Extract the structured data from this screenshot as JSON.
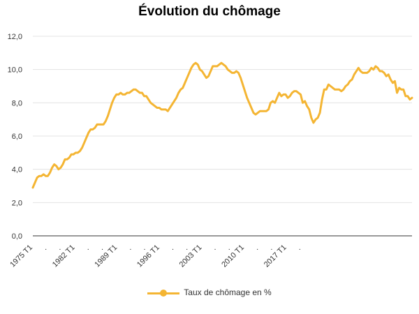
{
  "chart_data": {
    "type": "line",
    "title": "Évolution du chômage",
    "ylim": [
      0,
      12
    ],
    "yticks": [
      "0,0",
      "2,0",
      "4,0",
      "6,0",
      "8,0",
      "10,0",
      "12,0"
    ],
    "x_labels": [
      "1975 T1",
      ".",
      ".",
      "1982 T1",
      ".",
      ".",
      "1989 T1",
      ".",
      ".",
      "1996 T1",
      ".",
      ".",
      "2003 T1",
      ".",
      ".",
      "2010 T1",
      ".",
      ".",
      "2017 T1",
      "."
    ],
    "x_start": "1975 T1",
    "x_end": "2019 T2",
    "grid": true,
    "legend_position": "bottom",
    "color": "#F4B533",
    "series": [
      {
        "name": "Taux de chômage en %",
        "values": [
          2.9,
          3.2,
          3.5,
          3.6,
          3.6,
          3.7,
          3.6,
          3.6,
          3.8,
          4.1,
          4.3,
          4.2,
          4.0,
          4.1,
          4.3,
          4.6,
          4.6,
          4.7,
          4.9,
          4.9,
          5.0,
          5.0,
          5.1,
          5.3,
          5.6,
          5.9,
          6.2,
          6.4,
          6.4,
          6.5,
          6.7,
          6.7,
          6.7,
          6.7,
          6.9,
          7.2,
          7.6,
          8.0,
          8.3,
          8.5,
          8.5,
          8.6,
          8.5,
          8.5,
          8.6,
          8.6,
          8.7,
          8.8,
          8.8,
          8.7,
          8.6,
          8.6,
          8.4,
          8.4,
          8.2,
          8.0,
          7.9,
          7.8,
          7.7,
          7.7,
          7.6,
          7.6,
          7.6,
          7.5,
          7.7,
          7.9,
          8.1,
          8.3,
          8.6,
          8.8,
          8.9,
          9.2,
          9.5,
          9.8,
          10.1,
          10.3,
          10.4,
          10.3,
          10.0,
          9.9,
          9.7,
          9.5,
          9.6,
          9.9,
          10.2,
          10.2,
          10.2,
          10.3,
          10.4,
          10.3,
          10.2,
          10.0,
          9.9,
          9.8,
          9.8,
          9.9,
          9.8,
          9.5,
          9.1,
          8.7,
          8.3,
          8.0,
          7.7,
          7.4,
          7.3,
          7.4,
          7.5,
          7.5,
          7.5,
          7.5,
          7.6,
          8.0,
          8.1,
          8.0,
          8.3,
          8.6,
          8.4,
          8.5,
          8.5,
          8.3,
          8.4,
          8.6,
          8.7,
          8.7,
          8.6,
          8.5,
          8.0,
          8.1,
          7.8,
          7.6,
          7.1,
          6.8,
          7.0,
          7.1,
          7.4,
          8.2,
          8.8,
          8.8,
          9.1,
          9.0,
          8.9,
          8.8,
          8.8,
          8.8,
          8.7,
          8.8,
          9.0,
          9.1,
          9.3,
          9.4,
          9.7,
          9.9,
          10.1,
          9.9,
          9.8,
          9.8,
          9.8,
          9.9,
          10.1,
          10.0,
          10.2,
          10.1,
          9.9,
          9.9,
          9.8,
          9.6,
          9.7,
          9.4,
          9.2,
          9.3,
          8.6,
          8.9,
          8.8,
          8.8,
          8.4,
          8.4,
          8.2,
          8.3
        ]
      }
    ]
  }
}
